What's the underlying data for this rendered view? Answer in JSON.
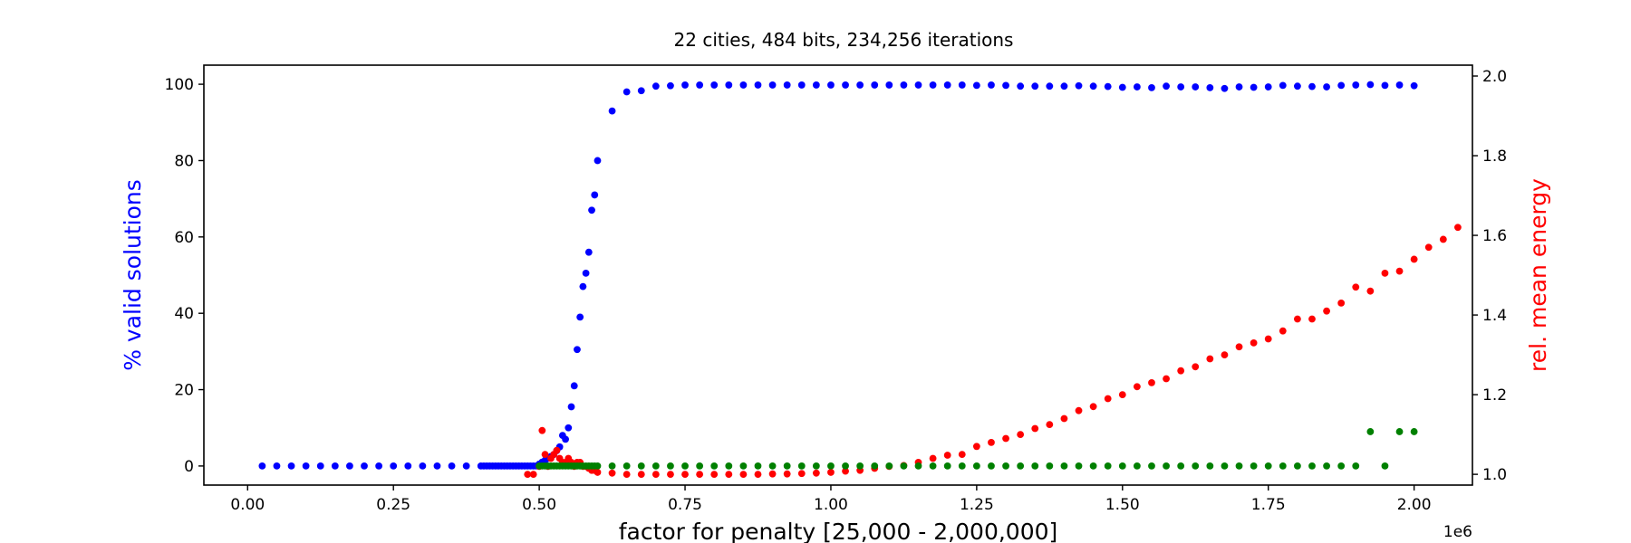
{
  "chart_data": {
    "type": "scatter",
    "title": "22 cities, 484 bits, 234,256 iterations",
    "xlabel": "factor for penalty [25,000 - 2,000,000]",
    "ylabel_left": "% valid solutions",
    "ylabel_right": "rel. mean energy",
    "x_offset_label": "1e6",
    "xlim": [
      -75000,
      2100000
    ],
    "ylim_left": [
      -5,
      105
    ],
    "ylim_right": [
      0.973,
      2.0273
    ],
    "grid": false,
    "legend": "none",
    "colors": {
      "valid": "#0000ff",
      "energy": "#ff0000",
      "green": "#008000"
    },
    "x_ticks": [
      0,
      250000,
      500000,
      750000,
      1000000,
      1250000,
      1500000,
      1750000,
      2000000
    ],
    "x_tick_labels": [
      "0.00",
      "0.25",
      "0.50",
      "0.75",
      "1.00",
      "1.25",
      "1.50",
      "1.75",
      "2.00"
    ],
    "left_ticks": [
      0,
      20,
      40,
      60,
      80,
      100
    ],
    "left_tick_labels": [
      "0",
      "20",
      "40",
      "60",
      "80",
      "100"
    ],
    "right_ticks": [
      1.0,
      1.2,
      1.4,
      1.6,
      1.8,
      2.0
    ],
    "right_tick_labels": [
      "1.0",
      "1.2",
      "1.4",
      "1.6",
      "1.8",
      "2.0"
    ],
    "series": [
      {
        "axis": "left",
        "color": "#0000ff",
        "points": [
          [
            25000,
            0
          ],
          [
            50000,
            0
          ],
          [
            75000,
            0
          ],
          [
            100000,
            0
          ],
          [
            125000,
            0
          ],
          [
            150000,
            0
          ],
          [
            175000,
            0
          ],
          [
            200000,
            0
          ],
          [
            225000,
            0
          ],
          [
            250000,
            0
          ],
          [
            275000,
            0
          ],
          [
            300000,
            0
          ],
          [
            325000,
            0
          ],
          [
            350000,
            0
          ],
          [
            375000,
            0
          ],
          [
            400000,
            0
          ],
          [
            405000,
            0
          ],
          [
            410000,
            0
          ],
          [
            415000,
            0
          ],
          [
            420000,
            0
          ],
          [
            425000,
            0
          ],
          [
            430000,
            0
          ],
          [
            435000,
            0
          ],
          [
            440000,
            0
          ],
          [
            445000,
            0
          ],
          [
            450000,
            0
          ],
          [
            455000,
            0
          ],
          [
            460000,
            0
          ],
          [
            465000,
            0
          ],
          [
            470000,
            0
          ],
          [
            475000,
            0
          ],
          [
            480000,
            0
          ],
          [
            485000,
            0
          ],
          [
            490000,
            0
          ],
          [
            495000,
            0
          ],
          [
            500000,
            0.5
          ],
          [
            505000,
            1
          ],
          [
            510000,
            1.5
          ],
          [
            515000,
            2
          ],
          [
            520000,
            2.5
          ],
          [
            525000,
            3
          ],
          [
            530000,
            4
          ],
          [
            535000,
            5
          ],
          [
            540000,
            8
          ],
          [
            545000,
            7
          ],
          [
            550000,
            10
          ],
          [
            555000,
            15.5
          ],
          [
            560000,
            21
          ],
          [
            565000,
            30.5
          ],
          [
            570000,
            39
          ],
          [
            575000,
            47
          ],
          [
            580000,
            50.5
          ],
          [
            585000,
            56
          ],
          [
            590000,
            67
          ],
          [
            595000,
            71
          ],
          [
            600000,
            80
          ],
          [
            625000,
            93
          ],
          [
            650000,
            98
          ],
          [
            675000,
            98.3
          ],
          [
            700000,
            99.5
          ],
          [
            725000,
            99.6
          ],
          [
            750000,
            99.8
          ],
          [
            775000,
            99.8
          ],
          [
            800000,
            99.8
          ],
          [
            825000,
            99.8
          ],
          [
            850000,
            99.8
          ],
          [
            875000,
            99.8
          ],
          [
            900000,
            99.8
          ],
          [
            925000,
            99.8
          ],
          [
            950000,
            99.8
          ],
          [
            975000,
            99.8
          ],
          [
            1000000,
            99.8
          ],
          [
            1025000,
            99.8
          ],
          [
            1050000,
            99.8
          ],
          [
            1075000,
            99.8
          ],
          [
            1100000,
            99.8
          ],
          [
            1125000,
            99.8
          ],
          [
            1150000,
            99.8
          ],
          [
            1175000,
            99.8
          ],
          [
            1200000,
            99.8
          ],
          [
            1225000,
            99.8
          ],
          [
            1250000,
            99.7
          ],
          [
            1275000,
            99.8
          ],
          [
            1300000,
            99.7
          ],
          [
            1325000,
            99.5
          ],
          [
            1350000,
            99.5
          ],
          [
            1375000,
            99.5
          ],
          [
            1400000,
            99.5
          ],
          [
            1425000,
            99.6
          ],
          [
            1450000,
            99.5
          ],
          [
            1475000,
            99.4
          ],
          [
            1500000,
            99.2
          ],
          [
            1525000,
            99.3
          ],
          [
            1550000,
            99.1
          ],
          [
            1575000,
            99.5
          ],
          [
            1600000,
            99.3
          ],
          [
            1625000,
            99.3
          ],
          [
            1650000,
            99.1
          ],
          [
            1675000,
            98.9
          ],
          [
            1700000,
            99.3
          ],
          [
            1725000,
            99.2
          ],
          [
            1750000,
            99.3
          ],
          [
            1775000,
            99.7
          ],
          [
            1800000,
            99.5
          ],
          [
            1825000,
            99.4
          ],
          [
            1850000,
            99.3
          ],
          [
            1875000,
            99.7
          ],
          [
            1900000,
            99.8
          ],
          [
            1925000,
            99.9
          ],
          [
            1950000,
            99.7
          ],
          [
            1975000,
            99.8
          ],
          [
            2000000,
            99.6
          ]
        ]
      },
      {
        "axis": "right",
        "color": "#ff0000",
        "points": [
          [
            480000,
            1.0
          ],
          [
            490000,
            1.0
          ],
          [
            500000,
            1.02
          ],
          [
            505000,
            1.11
          ],
          [
            510000,
            1.05
          ],
          [
            515000,
            1.02
          ],
          [
            520000,
            1.04
          ],
          [
            525000,
            1.05
          ],
          [
            530000,
            1.06
          ],
          [
            535000,
            1.04
          ],
          [
            540000,
            1.03
          ],
          [
            545000,
            1.03
          ],
          [
            550000,
            1.04
          ],
          [
            555000,
            1.03
          ],
          [
            560000,
            1.02
          ],
          [
            565000,
            1.03
          ],
          [
            570000,
            1.03
          ],
          [
            575000,
            1.02
          ],
          [
            580000,
            1.02
          ],
          [
            585000,
            1.015
          ],
          [
            590000,
            1.01
          ],
          [
            595000,
            1.01
          ],
          [
            600000,
            1.005
          ],
          [
            625000,
            1.003
          ],
          [
            650000,
            1.0
          ],
          [
            675000,
            1.0
          ],
          [
            700000,
            1.0
          ],
          [
            725000,
            1.0
          ],
          [
            750000,
            1.0
          ],
          [
            775000,
            1.0
          ],
          [
            800000,
            1.0
          ],
          [
            825000,
            1.0
          ],
          [
            850000,
            1.0
          ],
          [
            875000,
            1.0
          ],
          [
            900000,
            1.001
          ],
          [
            925000,
            1.001
          ],
          [
            950000,
            1.002
          ],
          [
            975000,
            1.003
          ],
          [
            1000000,
            1.005
          ],
          [
            1025000,
            1.008
          ],
          [
            1050000,
            1.01
          ],
          [
            1075000,
            1.015
          ],
          [
            1100000,
            1.02
          ],
          [
            1125000,
            1.022
          ],
          [
            1150000,
            1.03
          ],
          [
            1175000,
            1.04
          ],
          [
            1200000,
            1.048
          ],
          [
            1225000,
            1.05
          ],
          [
            1250000,
            1.07
          ],
          [
            1275000,
            1.08
          ],
          [
            1300000,
            1.09
          ],
          [
            1325000,
            1.1
          ],
          [
            1350000,
            1.115
          ],
          [
            1375000,
            1.125
          ],
          [
            1400000,
            1.14
          ],
          [
            1425000,
            1.16
          ],
          [
            1450000,
            1.17
          ],
          [
            1475000,
            1.19
          ],
          [
            1500000,
            1.2
          ],
          [
            1525000,
            1.22
          ],
          [
            1550000,
            1.23
          ],
          [
            1575000,
            1.24
          ],
          [
            1600000,
            1.26
          ],
          [
            1625000,
            1.27
          ],
          [
            1650000,
            1.29
          ],
          [
            1675000,
            1.3
          ],
          [
            1700000,
            1.32
          ],
          [
            1725000,
            1.33
          ],
          [
            1750000,
            1.34
          ],
          [
            1775000,
            1.36
          ],
          [
            1800000,
            1.39
          ],
          [
            1825000,
            1.39
          ],
          [
            1850000,
            1.41
          ],
          [
            1875000,
            1.43
          ],
          [
            1900000,
            1.47
          ],
          [
            1925000,
            1.46
          ],
          [
            1950000,
            1.505
          ],
          [
            1975000,
            1.51
          ],
          [
            2000000,
            1.54
          ],
          [
            2025000,
            1.57
          ],
          [
            2050000,
            1.59
          ],
          [
            2075000,
            1.62
          ]
        ]
      },
      {
        "axis": "left",
        "color": "#008000",
        "points": [
          [
            500000,
            0
          ],
          [
            505000,
            0
          ],
          [
            510000,
            0
          ],
          [
            515000,
            0
          ],
          [
            520000,
            0
          ],
          [
            525000,
            0
          ],
          [
            530000,
            0
          ],
          [
            535000,
            0
          ],
          [
            540000,
            0
          ],
          [
            545000,
            0
          ],
          [
            550000,
            0
          ],
          [
            555000,
            0
          ],
          [
            560000,
            0
          ],
          [
            565000,
            0
          ],
          [
            570000,
            0
          ],
          [
            575000,
            0
          ],
          [
            580000,
            0
          ],
          [
            585000,
            0
          ],
          [
            590000,
            0
          ],
          [
            595000,
            0
          ],
          [
            600000,
            0
          ],
          [
            625000,
            0
          ],
          [
            650000,
            0
          ],
          [
            675000,
            0
          ],
          [
            700000,
            0
          ],
          [
            725000,
            0
          ],
          [
            750000,
            0
          ],
          [
            775000,
            0
          ],
          [
            800000,
            0
          ],
          [
            825000,
            0
          ],
          [
            850000,
            0
          ],
          [
            875000,
            0
          ],
          [
            900000,
            0
          ],
          [
            925000,
            0
          ],
          [
            950000,
            0
          ],
          [
            975000,
            0
          ],
          [
            1000000,
            0
          ],
          [
            1025000,
            0
          ],
          [
            1050000,
            0
          ],
          [
            1075000,
            0
          ],
          [
            1100000,
            0
          ],
          [
            1125000,
            0
          ],
          [
            1150000,
            0
          ],
          [
            1175000,
            0
          ],
          [
            1200000,
            0
          ],
          [
            1225000,
            0
          ],
          [
            1250000,
            0
          ],
          [
            1275000,
            0
          ],
          [
            1300000,
            0
          ],
          [
            1325000,
            0
          ],
          [
            1350000,
            0
          ],
          [
            1375000,
            0
          ],
          [
            1400000,
            0
          ],
          [
            1425000,
            0
          ],
          [
            1450000,
            0
          ],
          [
            1475000,
            0
          ],
          [
            1500000,
            0
          ],
          [
            1525000,
            0
          ],
          [
            1550000,
            0
          ],
          [
            1575000,
            0
          ],
          [
            1600000,
            0
          ],
          [
            1625000,
            0
          ],
          [
            1650000,
            0
          ],
          [
            1675000,
            0
          ],
          [
            1700000,
            0
          ],
          [
            1725000,
            0
          ],
          [
            1750000,
            0
          ],
          [
            1775000,
            0
          ],
          [
            1800000,
            0
          ],
          [
            1825000,
            0
          ],
          [
            1850000,
            0
          ],
          [
            1875000,
            0
          ],
          [
            1900000,
            0
          ],
          [
            1925000,
            9
          ],
          [
            1950000,
            0
          ],
          [
            1975000,
            9
          ],
          [
            2000000,
            9
          ]
        ]
      }
    ]
  }
}
